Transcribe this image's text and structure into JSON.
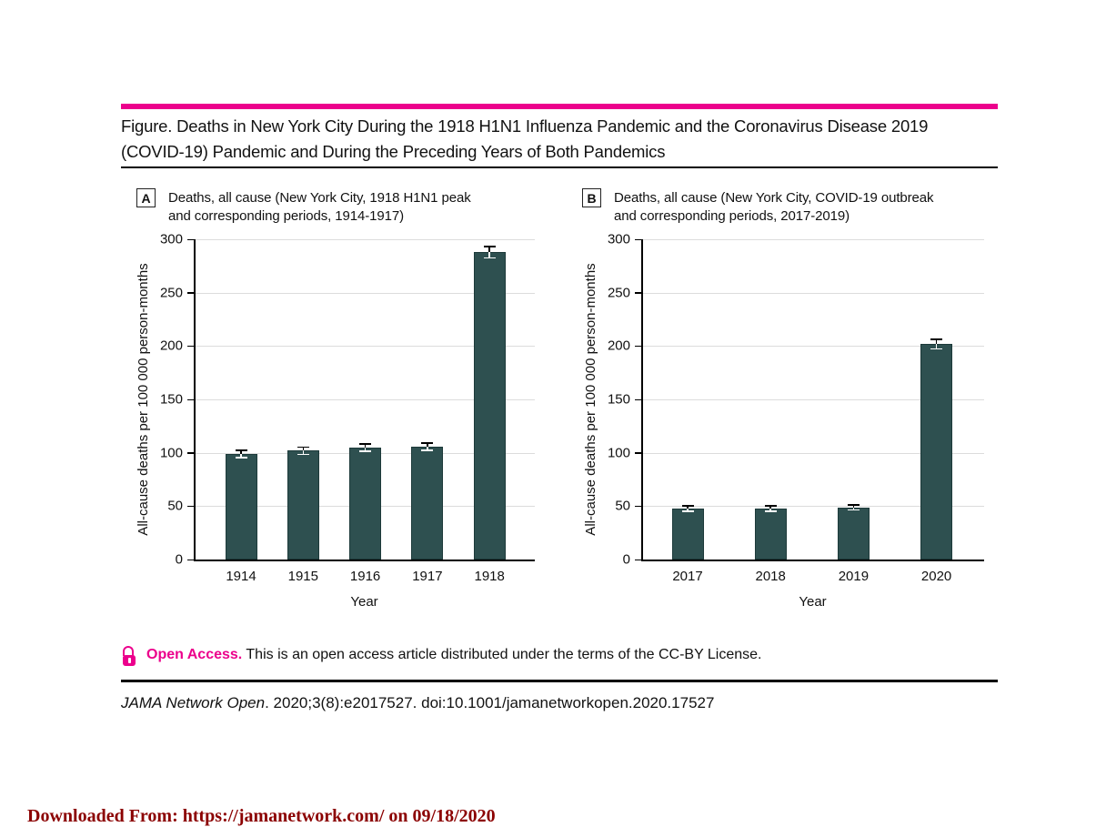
{
  "page": {
    "accent_magenta": "#EC008C",
    "bar_color": "#2E5050",
    "footer_color": "#8B0000"
  },
  "figure": {
    "title_line1": "Figure. Deaths in New York City During the 1918 H1N1 Influenza Pandemic and the Coronavirus Disease 2019",
    "title_line2": "(COVID-19) Pandemic and During the Preceding Years of Both Pandemics"
  },
  "open_access": {
    "icon": "open-lock-icon",
    "label": "Open Access.",
    "text": " This is an open access article distributed under the terms of the CC-BY License."
  },
  "citation": {
    "journal": "JAMA Network Open",
    "rest": ". 2020;3(8):e2017527. doi:10.1001/jamanetworkopen.2020.17527"
  },
  "footer": {
    "text": "Downloaded From: https://jamanetwork.com/ on 09/18/2020"
  },
  "chart_data": [
    {
      "type": "bar",
      "panel_label": "A",
      "title_line1": "Deaths, all cause  (New York City, 1918 H1N1 peak",
      "title_line2": "and corresponding periods, 1914-1917)",
      "categories": [
        "1914",
        "1915",
        "1916",
        "1917",
        "1918"
      ],
      "values": [
        99,
        102,
        105,
        106,
        288
      ],
      "error_bars": [
        3,
        3,
        3,
        3,
        5
      ],
      "xlabel": "Year",
      "ylabel": "All-cause deaths per 100 000 person-months",
      "ylim": [
        0,
        300
      ],
      "ytick_step": 50,
      "grid": true,
      "legend": "none",
      "bar_color": "#2E5050"
    },
    {
      "type": "bar",
      "panel_label": "B",
      "title_line1": "Deaths, all cause (New York City, COVID-19 outbreak",
      "title_line2": "and corresponding periods, 2017-2019)",
      "categories": [
        "2017",
        "2018",
        "2019",
        "2020"
      ],
      "values": [
        48,
        48,
        49,
        202
      ],
      "error_bars": [
        2,
        2,
        2,
        4
      ],
      "xlabel": "Year",
      "ylabel": "All-cause deaths per 100 000 person-months",
      "ylim": [
        0,
        300
      ],
      "ytick_step": 50,
      "grid": true,
      "legend": "none",
      "bar_color": "#2E5050"
    }
  ]
}
